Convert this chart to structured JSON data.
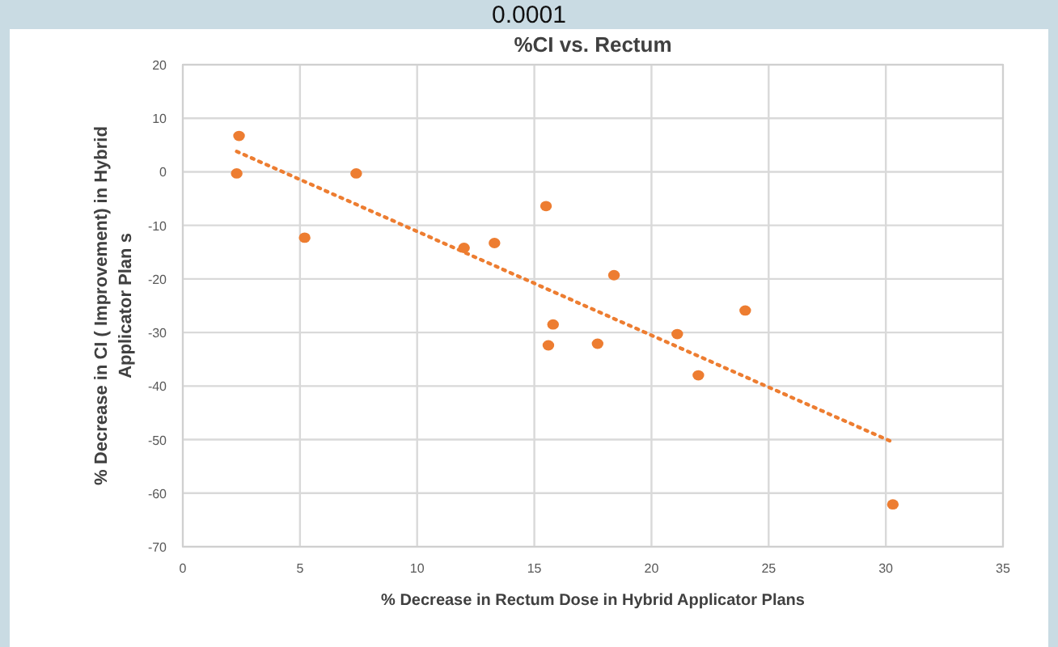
{
  "chart_data": {
    "type": "scatter",
    "title": "%CI vs. Rectum",
    "xlabel": "% Decrease in Rectum Dose in Hybrid Applicator Plans",
    "ylabel": "% Decrease in CI ( Improvement) in Hybrid\nApplicator Plan s",
    "annotations": [
      "0.0001"
    ],
    "x": [
      2.4,
      2.3,
      5.2,
      7.4,
      12,
      13.3,
      15.5,
      15.8,
      15.6,
      17.7,
      18.4,
      21.1,
      22,
      24,
      30.3
    ],
    "series": [
      {
        "color": "#ed7d31",
        "marker": "circle",
        "values": [
          6.7,
          -0.3,
          -12.3,
          -0.3,
          -14.2,
          -13.3,
          -6.4,
          -28.5,
          -32.4,
          -32.1,
          -19.3,
          -30.3,
          -38,
          -25.9,
          -62.1
        ]
      },
      {
        "type": "line",
        "color": "#ed7d31",
        "line_style": "dotted",
        "marker": "none",
        "x": [
          2.3,
          30.2
        ],
        "values": [
          3.8,
          -50.3
        ]
      }
    ],
    "xlim": [
      0,
      35
    ],
    "xticks": [
      0,
      5,
      10,
      15,
      20,
      25,
      30,
      35
    ],
    "ylim": [
      -70,
      20
    ],
    "yticks": [
      -70,
      -60,
      -50,
      -40,
      -30,
      -20,
      -10,
      0,
      10,
      20
    ],
    "grid": true
  }
}
